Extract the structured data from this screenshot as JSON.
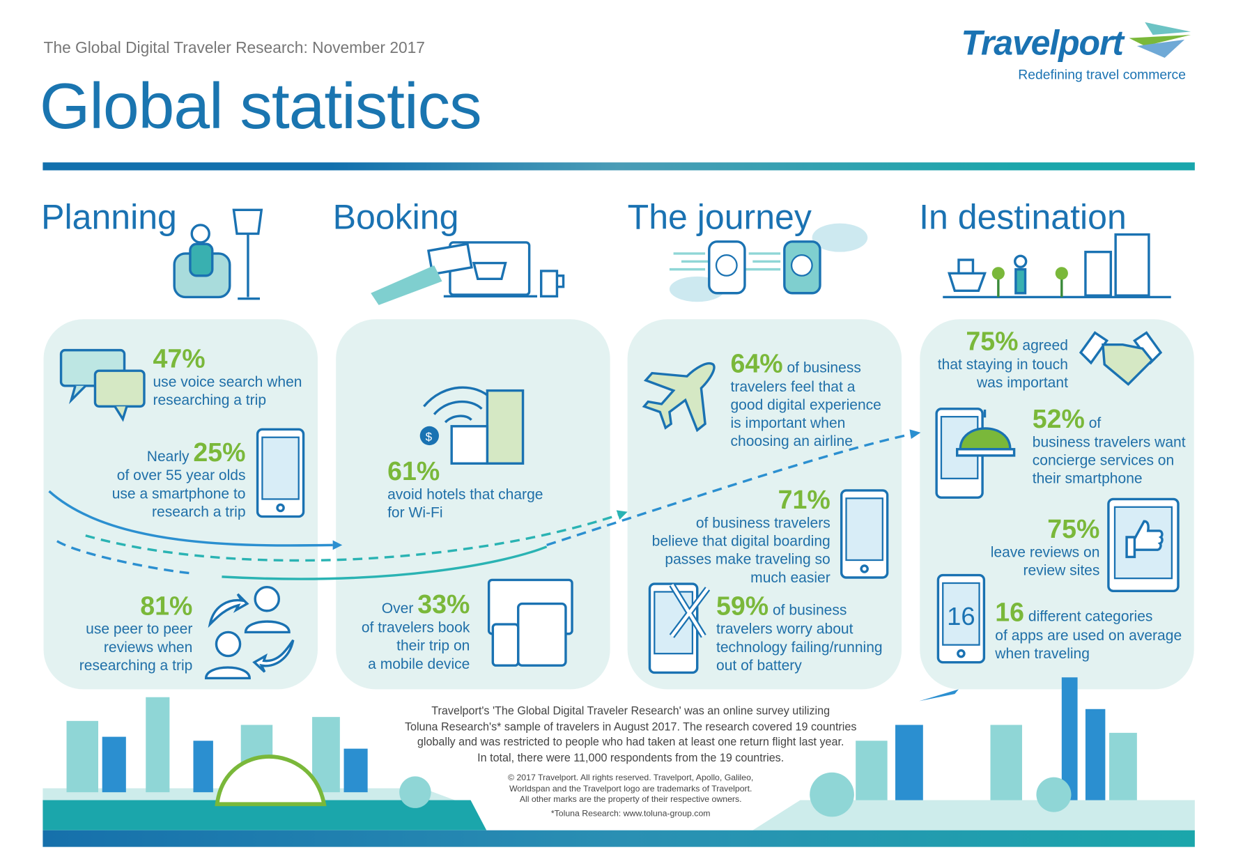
{
  "header": {
    "subtitle": "The Global Digital Traveler Research: November 2017",
    "title": "Global statistics"
  },
  "logo": {
    "name": "Travelport",
    "tagline": "Redefining travel commerce"
  },
  "colors": {
    "blue": "#1a72b2",
    "green": "#7ab83a",
    "panel": "#e3f2f1",
    "teal": "#1ba6ab"
  },
  "sections": {
    "planning": {
      "heading": "Planning",
      "stats": [
        {
          "value": "47%",
          "lines": [
            "use voice search when",
            "researching a trip"
          ]
        },
        {
          "prefix": "Nearly ",
          "value": "25%",
          "lines": [
            "of over 55 year olds",
            "use a smartphone to",
            "research a trip"
          ]
        },
        {
          "value": "81%",
          "lines": [
            "use peer to peer",
            "reviews when",
            "researching a trip"
          ]
        }
      ]
    },
    "booking": {
      "heading": "Booking",
      "stats": [
        {
          "value": "61%",
          "lines": [
            "avoid hotels that charge",
            "for Wi-Fi"
          ]
        },
        {
          "prefix": "Over ",
          "value": "33%",
          "lines": [
            "of travelers book",
            "their trip on",
            "a mobile device"
          ]
        }
      ]
    },
    "journey": {
      "heading": "The journey",
      "stats": [
        {
          "value": "64%",
          "suffix": " of business",
          "lines": [
            "travelers feel that a",
            "good digital experience",
            "is important when",
            "choosing an airline"
          ]
        },
        {
          "value": "71%",
          "lines": [
            "of business travelers",
            "believe that digital boarding",
            "passes make traveling so",
            "much easier"
          ]
        },
        {
          "value": "59%",
          "suffix": " of business",
          "lines": [
            "travelers worry about",
            "technology failing/running",
            "out of battery"
          ]
        }
      ]
    },
    "destination": {
      "heading": "In destination",
      "stats": [
        {
          "value": "75%",
          "suffix": " agreed",
          "lines": [
            "that staying in touch",
            "was important"
          ]
        },
        {
          "value": "52%",
          "suffix": " of",
          "lines": [
            "business travelers want",
            "concierge services on",
            "their smartphone"
          ]
        },
        {
          "value": "75%",
          "lines": [
            "leave reviews on",
            "review sites"
          ]
        },
        {
          "value": "16",
          "suffix": " different categories",
          "lines": [
            "of apps are used on average",
            "when traveling"
          ]
        }
      ]
    }
  },
  "icons": {
    "phone_number": "16"
  },
  "footer": {
    "about": [
      "Travelport's 'The Global Digital Traveler Research' was an online survey utilizing",
      "Toluna Research's* sample of travelers in August 2017. The research covered 19 countries",
      "globally and was restricted to people who had taken at least one return flight last year.",
      "In total, there were 11,000 respondents from the 19 countries."
    ],
    "copyright": [
      "© 2017 Travelport. All rights reserved. Travelport, Apollo, Galileo,",
      "Worldspan and the Travelport logo are trademarks of Travelport.",
      "All other marks are the property of their respective owners."
    ],
    "toluna": "*Toluna Research: www.toluna-group.com"
  }
}
